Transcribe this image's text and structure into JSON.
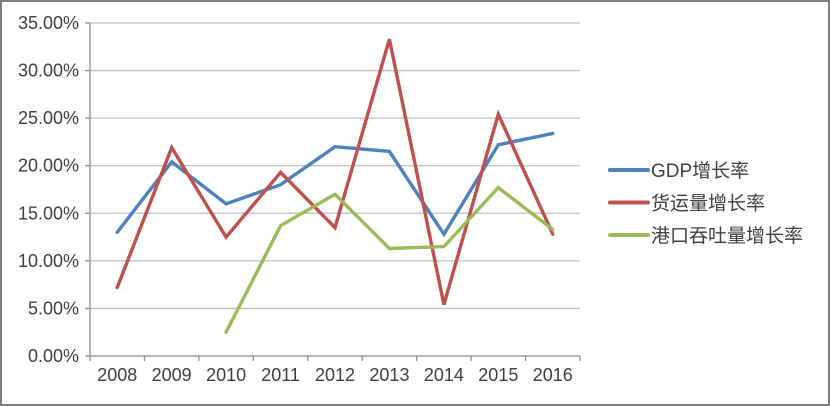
{
  "chart_data": {
    "type": "line",
    "categories": [
      "2008",
      "2009",
      "2010",
      "2011",
      "2012",
      "2013",
      "2014",
      "2015",
      "2016"
    ],
    "series": [
      {
        "name": "GDP增长率",
        "color": "#4F81BD",
        "values": [
          13.0,
          20.4,
          16.0,
          18.0,
          22.0,
          21.5,
          12.8,
          22.2,
          23.4
        ]
      },
      {
        "name": "货运量增长率",
        "color": "#C0504D",
        "values": [
          7.2,
          21.9,
          12.5,
          19.3,
          13.5,
          33.3,
          5.4,
          25.4,
          12.8
        ]
      },
      {
        "name": "港口吞吐量增长率",
        "color": "#9BBB59",
        "values": [
          null,
          null,
          2.5,
          13.7,
          17.0,
          11.3,
          11.5,
          17.7,
          13.3
        ]
      }
    ],
    "title": "",
    "xlabel": "",
    "ylabel": "",
    "ylim": [
      0,
      35
    ],
    "ytick_step": 5,
    "ytick_labels": [
      "0.00%",
      "5.00%",
      "10.00%",
      "15.00%",
      "20.00%",
      "25.00%",
      "30.00%",
      "35.00%"
    ],
    "grid": true,
    "legend_position": "right"
  },
  "colors": {
    "background": "#FFFFFF",
    "border": "#7F7F7F",
    "gridline": "#BFBFBF",
    "axis": "#8C8C8C",
    "text": "#3F3F3F"
  }
}
